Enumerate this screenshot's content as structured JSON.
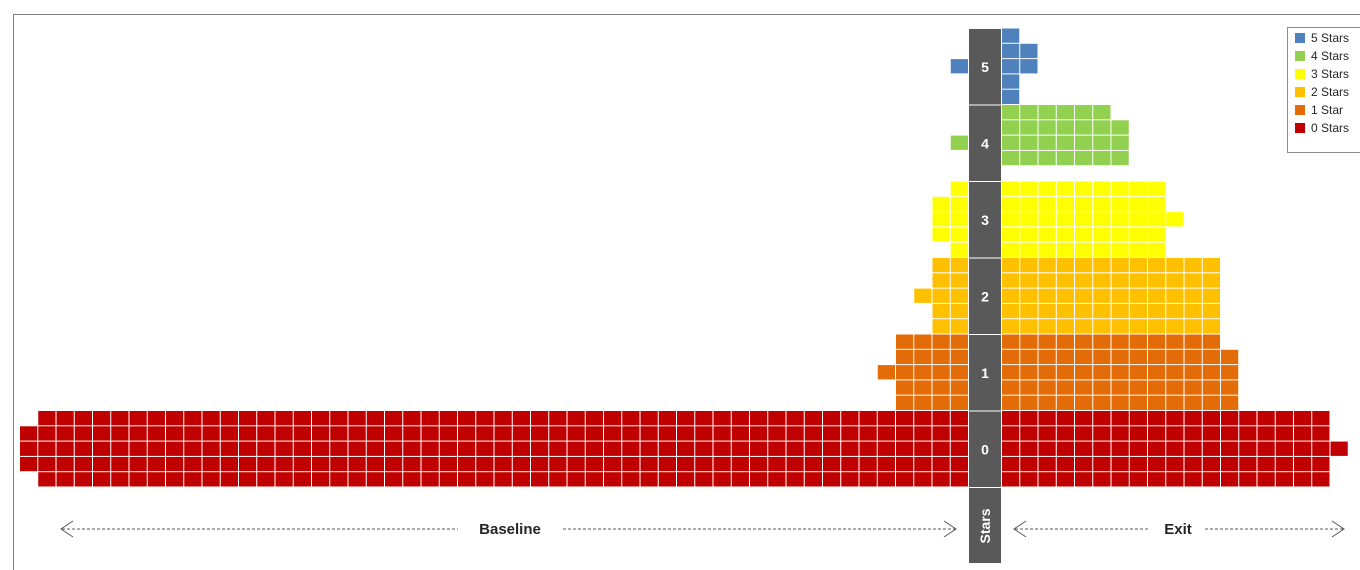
{
  "chart_data": {
    "type": "waffle-pyramid",
    "category_axis_label": "Stars",
    "categories": [
      "0",
      "1",
      "2",
      "3",
      "4",
      "5"
    ],
    "side_labels": {
      "left": "Baseline",
      "right": "Exit"
    },
    "series": [
      {
        "name": "5 Stars",
        "level": "5",
        "color": "#4f81bd",
        "baseline_rows": [
          0,
          0,
          1,
          0,
          0
        ],
        "exit_rows": [
          1,
          2,
          2,
          1,
          1
        ]
      },
      {
        "name": "4 Stars",
        "level": "4",
        "color": "#92d050",
        "baseline_rows": [
          0,
          0,
          1,
          0
        ],
        "exit_rows": [
          6,
          7,
          7,
          7
        ]
      },
      {
        "name": "3 Stars",
        "level": "3",
        "color": "#ffff00",
        "baseline_rows": [
          1,
          2,
          2,
          2,
          1
        ],
        "exit_rows": [
          9,
          9,
          10,
          9,
          9
        ]
      },
      {
        "name": "2 Stars",
        "level": "2",
        "color": "#ffc000",
        "baseline_rows": [
          2,
          2,
          3,
          2,
          2
        ],
        "exit_rows": [
          12,
          12,
          12,
          12,
          12
        ]
      },
      {
        "name": "1 Star",
        "level": "1",
        "color": "#e36c09",
        "baseline_rows": [
          4,
          4,
          5,
          4,
          4
        ],
        "exit_rows": [
          12,
          13,
          13,
          13,
          13
        ]
      },
      {
        "name": "0 Stars",
        "level": "0",
        "color": "#c00000",
        "baseline_rows": [
          51,
          52,
          52,
          52,
          51
        ],
        "exit_rows": [
          18,
          18,
          19,
          18,
          18
        ]
      }
    ],
    "legend": {
      "position": "top-right",
      "entries": [
        "5 Stars",
        "4 Stars",
        "3 Stars",
        "2 Stars",
        "1 Star",
        "0 Stars"
      ]
    }
  }
}
